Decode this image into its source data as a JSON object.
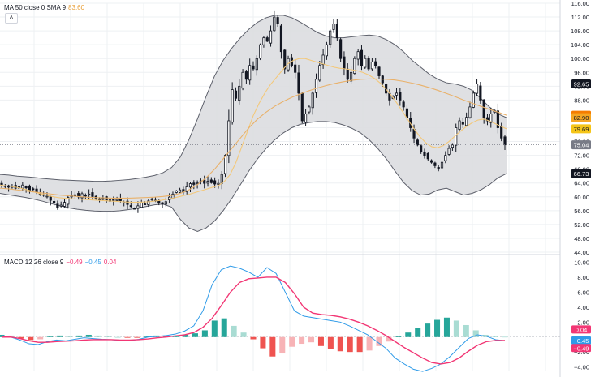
{
  "ma_legend": {
    "label": "MA 50 close 0 SMA 9",
    "value": "83.60",
    "value_color": "#e8a03a"
  },
  "macd_legend": {
    "label": "MACD 12 26 close 9",
    "v1": "−0.49",
    "v2": "−0.45",
    "v3": "0.04",
    "c1": "#f23674",
    "c2": "#2f9be8",
    "c3": "#f23674"
  },
  "collapse_glyph": "˄",
  "colors": {
    "candle": "#131722",
    "band_fill": "#dcdde0",
    "band_line": "#5d606b",
    "sma_line": "#f3c87a",
    "ma_line": "#e9b16a",
    "macd_line": "#2f9be8",
    "signal_line": "#f23674",
    "hist_up_strong": "#26a69a",
    "hist_up_weak": "#a9dcd3",
    "hist_down_strong": "#ef5350",
    "hist_down_weak": "#f7b3b6",
    "grid": "#eef0f3"
  },
  "chart_data": [
    {
      "type": "candlestick",
      "y_ticks": [
        "116.00",
        "112.00",
        "108.00",
        "104.00",
        "100.00",
        "96.00",
        "92.00",
        "88.00",
        "84.00",
        "80.00",
        "76.00",
        "72.00",
        "68.00",
        "64.00",
        "60.00",
        "56.00",
        "52.00",
        "48.00",
        "44.00"
      ],
      "ylim": [
        44,
        116
      ],
      "grid": true,
      "close": [
        63.5,
        63.2,
        62.8,
        63.0,
        62.5,
        62.9,
        63.4,
        62.6,
        61.8,
        62.2,
        61.4,
        61.0,
        60.6,
        60.2,
        59.0,
        58.2,
        57.0,
        57.6,
        58.4,
        59.8,
        60.4,
        60.6,
        60.0,
        60.9,
        60.3,
        60.8,
        60.1,
        59.6,
        59.1,
        59.5,
        59.0,
        58.7,
        58.8,
        59.2,
        58.9,
        58.5,
        57.8,
        57.2,
        56.6,
        57.4,
        58.2,
        57.9,
        58.8,
        59.4,
        59.0,
        58.4,
        57.9,
        58.6,
        59.9,
        60.8,
        61.7,
        62.0,
        61.4,
        62.9,
        63.8,
        63.6,
        64.0,
        64.6,
        63.9,
        64.5,
        64.1,
        63.7,
        63.9,
        66.5,
        72.0,
        82.0,
        91.0,
        88.5,
        92.0,
        96.0,
        94.0,
        98.0,
        97.0,
        100.0,
        104.0,
        106.0,
        105.0,
        108.0,
        112.0,
        110.0,
        102.0,
        97.0,
        100.0,
        98.0,
        96.0,
        90.0,
        82.0,
        84.0,
        86.0,
        90.0,
        94.0,
        98.0,
        101.0,
        104.0,
        108.0,
        110.0,
        106.0,
        100.0,
        97.0,
        94.0,
        96.0,
        100.0,
        102.0,
        98.0,
        100.0,
        97.0,
        99.0,
        98.0,
        95.0,
        93.0,
        90.0,
        88.0,
        89.0,
        90.0,
        88.0,
        86.0,
        83.0,
        80.0,
        77.0,
        75.0,
        73.0,
        72.0,
        71.0,
        70.0,
        69.0,
        68.0,
        70.0,
        72.0,
        74.0,
        75.0,
        80.0,
        82.0,
        81.0,
        83.0,
        86.0,
        90.0,
        92.65,
        88.0,
        83.0,
        82.0,
        84.0,
        85.0,
        80.0,
        77.0,
        75.04
      ],
      "volatility": 1.2,
      "sma_values": [
        63.4,
        63.2,
        63.0,
        62.7,
        62.3,
        61.9,
        61.4,
        60.9,
        60.5,
        60.1,
        59.8,
        59.6,
        59.5,
        59.4,
        59.3,
        59.2,
        59.1,
        59.0,
        58.9,
        58.8,
        58.7,
        58.6,
        58.5,
        58.4,
        58.4,
        58.5,
        58.6,
        58.8,
        59.0,
        59.3,
        59.6,
        60.0,
        60.4,
        60.8,
        61.3,
        61.8,
        62.3,
        62.8,
        63.3,
        64.5,
        66.5,
        70.0,
        74.5,
        79.0,
        83.5,
        87.0,
        90.0,
        92.5,
        94.5,
        96.5,
        98.5,
        99.5,
        100.0,
        100.0,
        99.5,
        99.0,
        98.5,
        98.0,
        97.5,
        97.2,
        97.0,
        96.8,
        96.5,
        96.0,
        95.3,
        94.3,
        93.0,
        91.3,
        89.3,
        87.0,
        84.5,
        82.0,
        79.5,
        77.3,
        75.6,
        74.5,
        74.2,
        74.8,
        76.0,
        77.5,
        79.0,
        80.3,
        81.4,
        82.2,
        82.5,
        82.0,
        81.2,
        80.4,
        79.69
      ],
      "ma_values": [
        62.5,
        62.3,
        62.0,
        61.7,
        61.4,
        61.1,
        60.8,
        60.5,
        60.3,
        60.1,
        59.9,
        59.8,
        59.7,
        59.6,
        59.6,
        59.6,
        59.7,
        59.8,
        59.9,
        60.1,
        60.4,
        61.0,
        62.0,
        63.5,
        65.5,
        68.0,
        71.0,
        74.0,
        77.0,
        80.0,
        82.5,
        84.5,
        86.2,
        87.6,
        88.8,
        89.8,
        90.7,
        91.5,
        92.2,
        92.8,
        93.3,
        93.7,
        94.0,
        94.1,
        94.1,
        94.0,
        93.8,
        93.4,
        92.9,
        92.3,
        91.6,
        90.8,
        89.9,
        89.0,
        88.0,
        87.1,
        86.2,
        85.3,
        84.5,
        83.6
      ],
      "bb_upper": [
        66.5,
        66.3,
        66.0,
        65.8,
        65.6,
        65.3,
        65.1,
        64.9,
        64.8,
        64.7,
        64.6,
        64.5,
        64.5,
        64.6,
        64.8,
        65.0,
        65.3,
        65.7,
        66.2,
        67.0,
        68.5,
        71.5,
        76.5,
        82.5,
        89.0,
        95.0,
        99.5,
        103.0,
        106.0,
        108.5,
        110.5,
        111.8,
        112.5,
        112.5,
        111.8,
        110.5,
        109.0,
        107.5,
        106.5,
        106.0,
        106.0,
        106.3,
        106.6,
        106.8,
        106.5,
        105.5,
        104.0,
        102.0,
        99.5,
        97.5,
        95.5,
        94.0,
        93.0,
        92.65,
        92.0,
        90.8,
        88.5,
        86.0,
        84.0,
        82.9
      ],
      "bb_lower": [
        61.0,
        60.6,
        60.2,
        59.8,
        59.3,
        58.7,
        58.0,
        57.4,
        56.8,
        56.4,
        56.1,
        55.9,
        55.8,
        55.8,
        56.0,
        56.3,
        56.7,
        57.2,
        57.7,
        57.9,
        57.0,
        53.5,
        51.0,
        50.0,
        51.0,
        53.0,
        56.0,
        59.5,
        63.5,
        67.5,
        71.0,
        74.0,
        76.5,
        78.5,
        80.0,
        81.0,
        81.5,
        81.8,
        81.8,
        81.5,
        80.8,
        79.8,
        78.5,
        76.5,
        74.0,
        71.0,
        67.5,
        64.2,
        61.8,
        60.5,
        60.8,
        62.0,
        62.5,
        61.5,
        60.5,
        61.0,
        62.0,
        63.5,
        65.5,
        66.73
      ],
      "last_price": "75.04",
      "price_tags": [
        {
          "value": 92.65,
          "text": "92.65",
          "bg": "#131722",
          "fg": "#ffffff"
        },
        {
          "value": 83.6,
          "text": "83.60",
          "bg": "#f57c00",
          "fg": "#ffffff"
        },
        {
          "value": 82.9,
          "text": "82.90",
          "bg": "#f5a623",
          "fg": "#131722"
        },
        {
          "value": 79.69,
          "text": "79.69",
          "bg": "#f5c518",
          "fg": "#131722"
        },
        {
          "value": 75.04,
          "text": "75.04",
          "bg": "#787b86",
          "fg": "#ffffff"
        },
        {
          "value": 66.73,
          "text": "66.73",
          "bg": "#131722",
          "fg": "#ffffff"
        }
      ]
    },
    {
      "type": "macd",
      "y_ticks": [
        "10.00",
        "8.00",
        "6.00",
        "4.00",
        "2.00",
        "−2.00",
        "−4.00"
      ],
      "y_tick_values": [
        10,
        8,
        6,
        4,
        2,
        -2,
        -4
      ],
      "ylim": [
        -4.8,
        10.6
      ],
      "macd_values": [
        0.2,
        0.0,
        -0.4,
        -0.9,
        -1.0,
        -0.6,
        -0.4,
        -0.5,
        -0.3,
        -0.1,
        -0.2,
        -0.3,
        -0.35,
        -0.45,
        -0.5,
        -0.3,
        0.0,
        0.1,
        0.2,
        0.4,
        0.8,
        1.5,
        3.5,
        7.0,
        9.0,
        9.5,
        9.2,
        8.7,
        8.0,
        9.3,
        8.5,
        6.0,
        3.5,
        2.8,
        2.6,
        2.4,
        2.2,
        2.0,
        1.5,
        0.9,
        0.3,
        -0.6,
        -1.5,
        -2.8,
        -3.6,
        -4.3,
        -4.6,
        -4.2,
        -3.6,
        -2.6,
        -1.4,
        -0.2,
        0.3,
        0.1,
        -0.35,
        -0.49
      ],
      "signal_values": [
        0.0,
        0.0,
        -0.2,
        -0.5,
        -0.7,
        -0.7,
        -0.6,
        -0.55,
        -0.5,
        -0.4,
        -0.35,
        -0.35,
        -0.35,
        -0.4,
        -0.4,
        -0.35,
        -0.25,
        -0.1,
        0.0,
        0.15,
        0.3,
        0.6,
        1.3,
        2.5,
        4.2,
        6.0,
        7.3,
        7.8,
        7.9,
        8.0,
        8.0,
        7.3,
        5.8,
        4.0,
        3.2,
        3.0,
        2.9,
        2.7,
        2.4,
        2.0,
        1.5,
        0.9,
        0.2,
        -0.6,
        -1.4,
        -2.1,
        -2.8,
        -3.4,
        -3.6,
        -3.4,
        -2.8,
        -1.9,
        -1.1,
        -0.6,
        -0.45,
        -0.45
      ],
      "hist_values": [
        0.3,
        0.2,
        -0.2,
        -0.4,
        -0.3,
        0.1,
        0.2,
        0.1,
        0.2,
        0.3,
        0.2,
        0.1,
        0.0,
        -0.1,
        -0.1,
        0.1,
        0.2,
        0.2,
        0.2,
        0.3,
        0.5,
        0.9,
        2.2,
        2.5,
        1.5,
        0.6,
        -0.3,
        -1.5,
        -2.6,
        -2.2,
        -1.3,
        -0.9,
        -0.7,
        -1.2,
        -1.6,
        -1.9,
        -2.0,
        -2.0,
        -1.8,
        -1.2,
        -0.6,
        0.1,
        0.6,
        1.2,
        1.8,
        2.3,
        2.6,
        2.2,
        1.6,
        0.9,
        0.3,
        0.15,
        0.04
      ],
      "tags": [
        {
          "value": 0.04,
          "text": "0.04",
          "bg": "#f23674"
        },
        {
          "value": -0.45,
          "text": "−0.45",
          "bg": "#2f9be8"
        },
        {
          "value": -0.49,
          "text": "−0.49",
          "bg": "#f23674"
        }
      ]
    }
  ]
}
